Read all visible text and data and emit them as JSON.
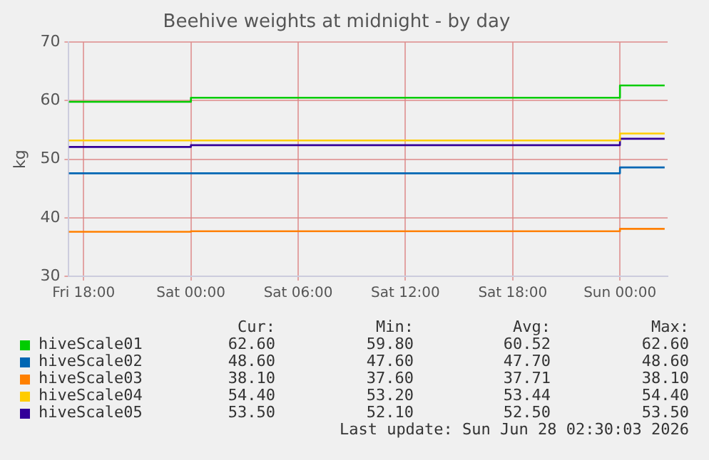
{
  "chart_data": {
    "type": "step",
    "title": "Beehive weights at midnight - by day",
    "ylabel": "kg",
    "x": [
      "2026-06-26T17:10",
      "2026-06-27T00:00",
      "2026-06-28T00:00",
      "2026-06-28T02:30"
    ],
    "xlim": [
      "2026-06-26T17:10",
      "2026-06-28T02:40"
    ],
    "xticks": [
      {
        "value": "2026-06-26T18:00",
        "label": "Fri 18:00"
      },
      {
        "value": "2026-06-27T00:00",
        "label": "Sat 00:00"
      },
      {
        "value": "2026-06-27T06:00",
        "label": "Sat 06:00"
      },
      {
        "value": "2026-06-27T12:00",
        "label": "Sat 12:00"
      },
      {
        "value": "2026-06-27T18:00",
        "label": "Sat 18:00"
      },
      {
        "value": "2026-06-28T00:00",
        "label": "Sun 00:00"
      }
    ],
    "ylim": [
      30,
      70
    ],
    "yticks": [
      30,
      40,
      50,
      60,
      70
    ],
    "grid": true,
    "legend": "bottom",
    "marker": "none",
    "line_style": "solid",
    "series": [
      {
        "name": "hiveScale01",
        "color": "#00cc00",
        "values": [
          59.8,
          60.5,
          62.6,
          62.6
        ]
      },
      {
        "name": "hiveScale02",
        "color": "#0066b3",
        "values": [
          47.6,
          47.6,
          48.6,
          48.6
        ]
      },
      {
        "name": "hiveScale03",
        "color": "#ff8000",
        "values": [
          37.6,
          37.7,
          38.1,
          38.1
        ]
      },
      {
        "name": "hiveScale04",
        "color": "#ffcc00",
        "values": [
          53.2,
          53.2,
          54.4,
          54.4
        ]
      },
      {
        "name": "hiveScale05",
        "color": "#330099",
        "values": [
          52.1,
          52.4,
          53.5,
          53.5
        ]
      }
    ],
    "annotations": [
      "Cur:",
      "Min:",
      "Avg:",
      "Max:",
      "62.60",
      "59.80",
      "60.52",
      "62.60",
      "48.60",
      "47.60",
      "47.70",
      "48.60",
      "38.10",
      "37.60",
      "37.71",
      "38.10",
      "54.40",
      "53.20",
      "53.44",
      "54.40",
      "53.50",
      "52.10",
      "52.50",
      "53.50",
      "Last update: Sun Jun 28 02:30:03 2026"
    ]
  }
}
